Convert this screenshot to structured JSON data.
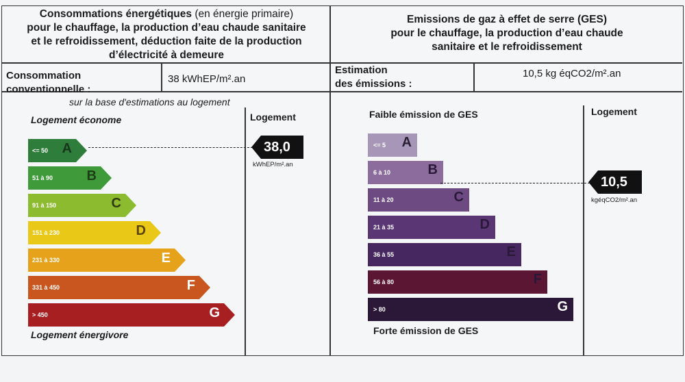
{
  "energy": {
    "header_bold_1": "Consommations énergétiques",
    "header_normal_1": " (en énergie primaire)",
    "header_bold_2": "pour le chauffage, la production d’eau chaude sanitaire",
    "header_bold_3": "et le refroidissement, déduction faite de la production",
    "header_bold_4": "d’électricité à demeure",
    "label_line1": "Consommation",
    "label_line2": "conventionnelle :",
    "value": "38  kWhEP/m².an",
    "basis_note": "sur la base d'estimations au logement",
    "top_caption": "Logement économe",
    "bottom_caption": "Logement énergivore",
    "logement_label": "Logement",
    "marker_value": "38,0",
    "marker_unit": "kWhEP/m².an",
    "classes": [
      {
        "letter": "A",
        "range": "<= 50",
        "color": "#2e7d3a",
        "letter_color": "#17361c"
      },
      {
        "letter": "B",
        "range": "51 à 90",
        "color": "#3f9b3a",
        "letter_color": "#1d3d16"
      },
      {
        "letter": "C",
        "range": "91 à 150",
        "color": "#8dbb30",
        "letter_color": "#2f3d0e"
      },
      {
        "letter": "D",
        "range": "151 à 230",
        "color": "#e9c817",
        "letter_color": "#5a4300"
      },
      {
        "letter": "E",
        "range": "231 à 330",
        "color": "#e5a21a",
        "letter_color": "#ffffff"
      },
      {
        "letter": "F",
        "range": "331 à 450",
        "color": "#c9561f",
        "letter_color": "#ffffff"
      },
      {
        "letter": "G",
        "range": "> 450",
        "color": "#a81f22",
        "letter_color": "#ffffff"
      }
    ]
  },
  "ges": {
    "header_line1": "Emissions de gaz à effet de serre (GES)",
    "header_line2": "pour le chauffage, la production d’eau chaude",
    "header_line3": "sanitaire et le refroidissement",
    "label_line1": "Estimation",
    "label_line2": "des émissions :",
    "value": "10,5 kg éqCO2/m².an",
    "top_caption": "Faible émission de GES",
    "bottom_caption": "Forte émission de GES",
    "logement_label": "Logement",
    "marker_value": "10,5",
    "marker_unit": "kgéqCO2/m².an",
    "classes": [
      {
        "letter": "A",
        "range": "<= 5",
        "color": "#a796b8",
        "letter_color": "#2a2033"
      },
      {
        "letter": "B",
        "range": "6 à 10",
        "color": "#8b6c9d",
        "letter_color": "#2a1838"
      },
      {
        "letter": "C",
        "range": "11 à 20",
        "color": "#6e4a83",
        "letter_color": "#2a1838"
      },
      {
        "letter": "D",
        "range": "21 à 35",
        "color": "#5a3675",
        "letter_color": "#2a1838"
      },
      {
        "letter": "E",
        "range": "36 à 55",
        "color": "#46275f",
        "letter_color": "#2a1838"
      },
      {
        "letter": "F",
        "range": "56 à 80",
        "color": "#5b1634",
        "letter_color": "#2a1838"
      },
      {
        "letter": "G",
        "range": "> 80",
        "color": "#2b1838",
        "letter_color": "#ffffff"
      }
    ]
  }
}
